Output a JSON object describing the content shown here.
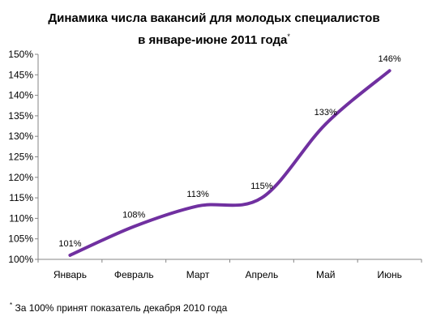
{
  "chart_data": {
    "type": "line",
    "title_line1": "Динамика числа вакансий для молодых специалистов",
    "title_line2": "в январе-июне 2011 года",
    "title_mark": "*",
    "categories": [
      "Январь",
      "Февраль",
      "Март",
      "Апрель",
      "Май",
      "Июнь"
    ],
    "values": [
      101,
      108,
      113,
      115,
      133,
      146
    ],
    "data_labels": [
      "101%",
      "108%",
      "113%",
      "115%",
      "133%",
      "146%"
    ],
    "y_ticks": [
      "100%",
      "105%",
      "110%",
      "115%",
      "120%",
      "125%",
      "130%",
      "135%",
      "140%",
      "145%",
      "150%"
    ],
    "ylim": [
      100,
      150
    ],
    "grid": false,
    "line_color": "#7030A0",
    "footnote_mark": "*",
    "footnote": "За 100% принят показатель декабря 2010 года"
  }
}
